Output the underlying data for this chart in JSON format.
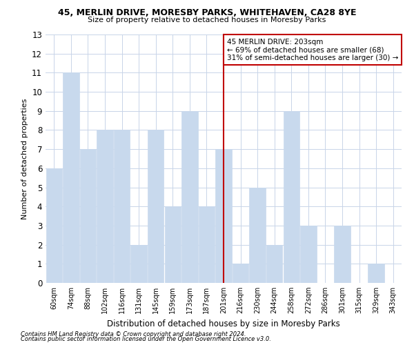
{
  "title1": "45, MERLIN DRIVE, MORESBY PARKS, WHITEHAVEN, CA28 8YE",
  "title2": "Size of property relative to detached houses in Moresby Parks",
  "xlabel": "Distribution of detached houses by size in Moresby Parks",
  "ylabel": "Number of detached properties",
  "categories": [
    "60sqm",
    "74sqm",
    "88sqm",
    "102sqm",
    "116sqm",
    "131sqm",
    "145sqm",
    "159sqm",
    "173sqm",
    "187sqm",
    "201sqm",
    "216sqm",
    "230sqm",
    "244sqm",
    "258sqm",
    "272sqm",
    "286sqm",
    "301sqm",
    "315sqm",
    "329sqm",
    "343sqm"
  ],
  "values": [
    6,
    11,
    7,
    8,
    8,
    2,
    8,
    4,
    9,
    4,
    7,
    1,
    5,
    2,
    9,
    3,
    0,
    3,
    0,
    1,
    0
  ],
  "highlight_index": 10,
  "bar_color": "#c8d9ed",
  "bar_edge_color": "#a8c0de",
  "highlight_line_color": "#c00000",
  "ylim": [
    0,
    13
  ],
  "yticks": [
    0,
    1,
    2,
    3,
    4,
    5,
    6,
    7,
    8,
    9,
    10,
    11,
    12,
    13
  ],
  "annotation_text": "45 MERLIN DRIVE: 203sqm\n← 69% of detached houses are smaller (68)\n31% of semi-detached houses are larger (30) →",
  "footer1": "Contains HM Land Registry data © Crown copyright and database right 2024.",
  "footer2": "Contains public sector information licensed under the Open Government Licence v3.0.",
  "annotation_box_color": "#c00000",
  "background_color": "#ffffff",
  "grid_color": "#c8d4e8"
}
